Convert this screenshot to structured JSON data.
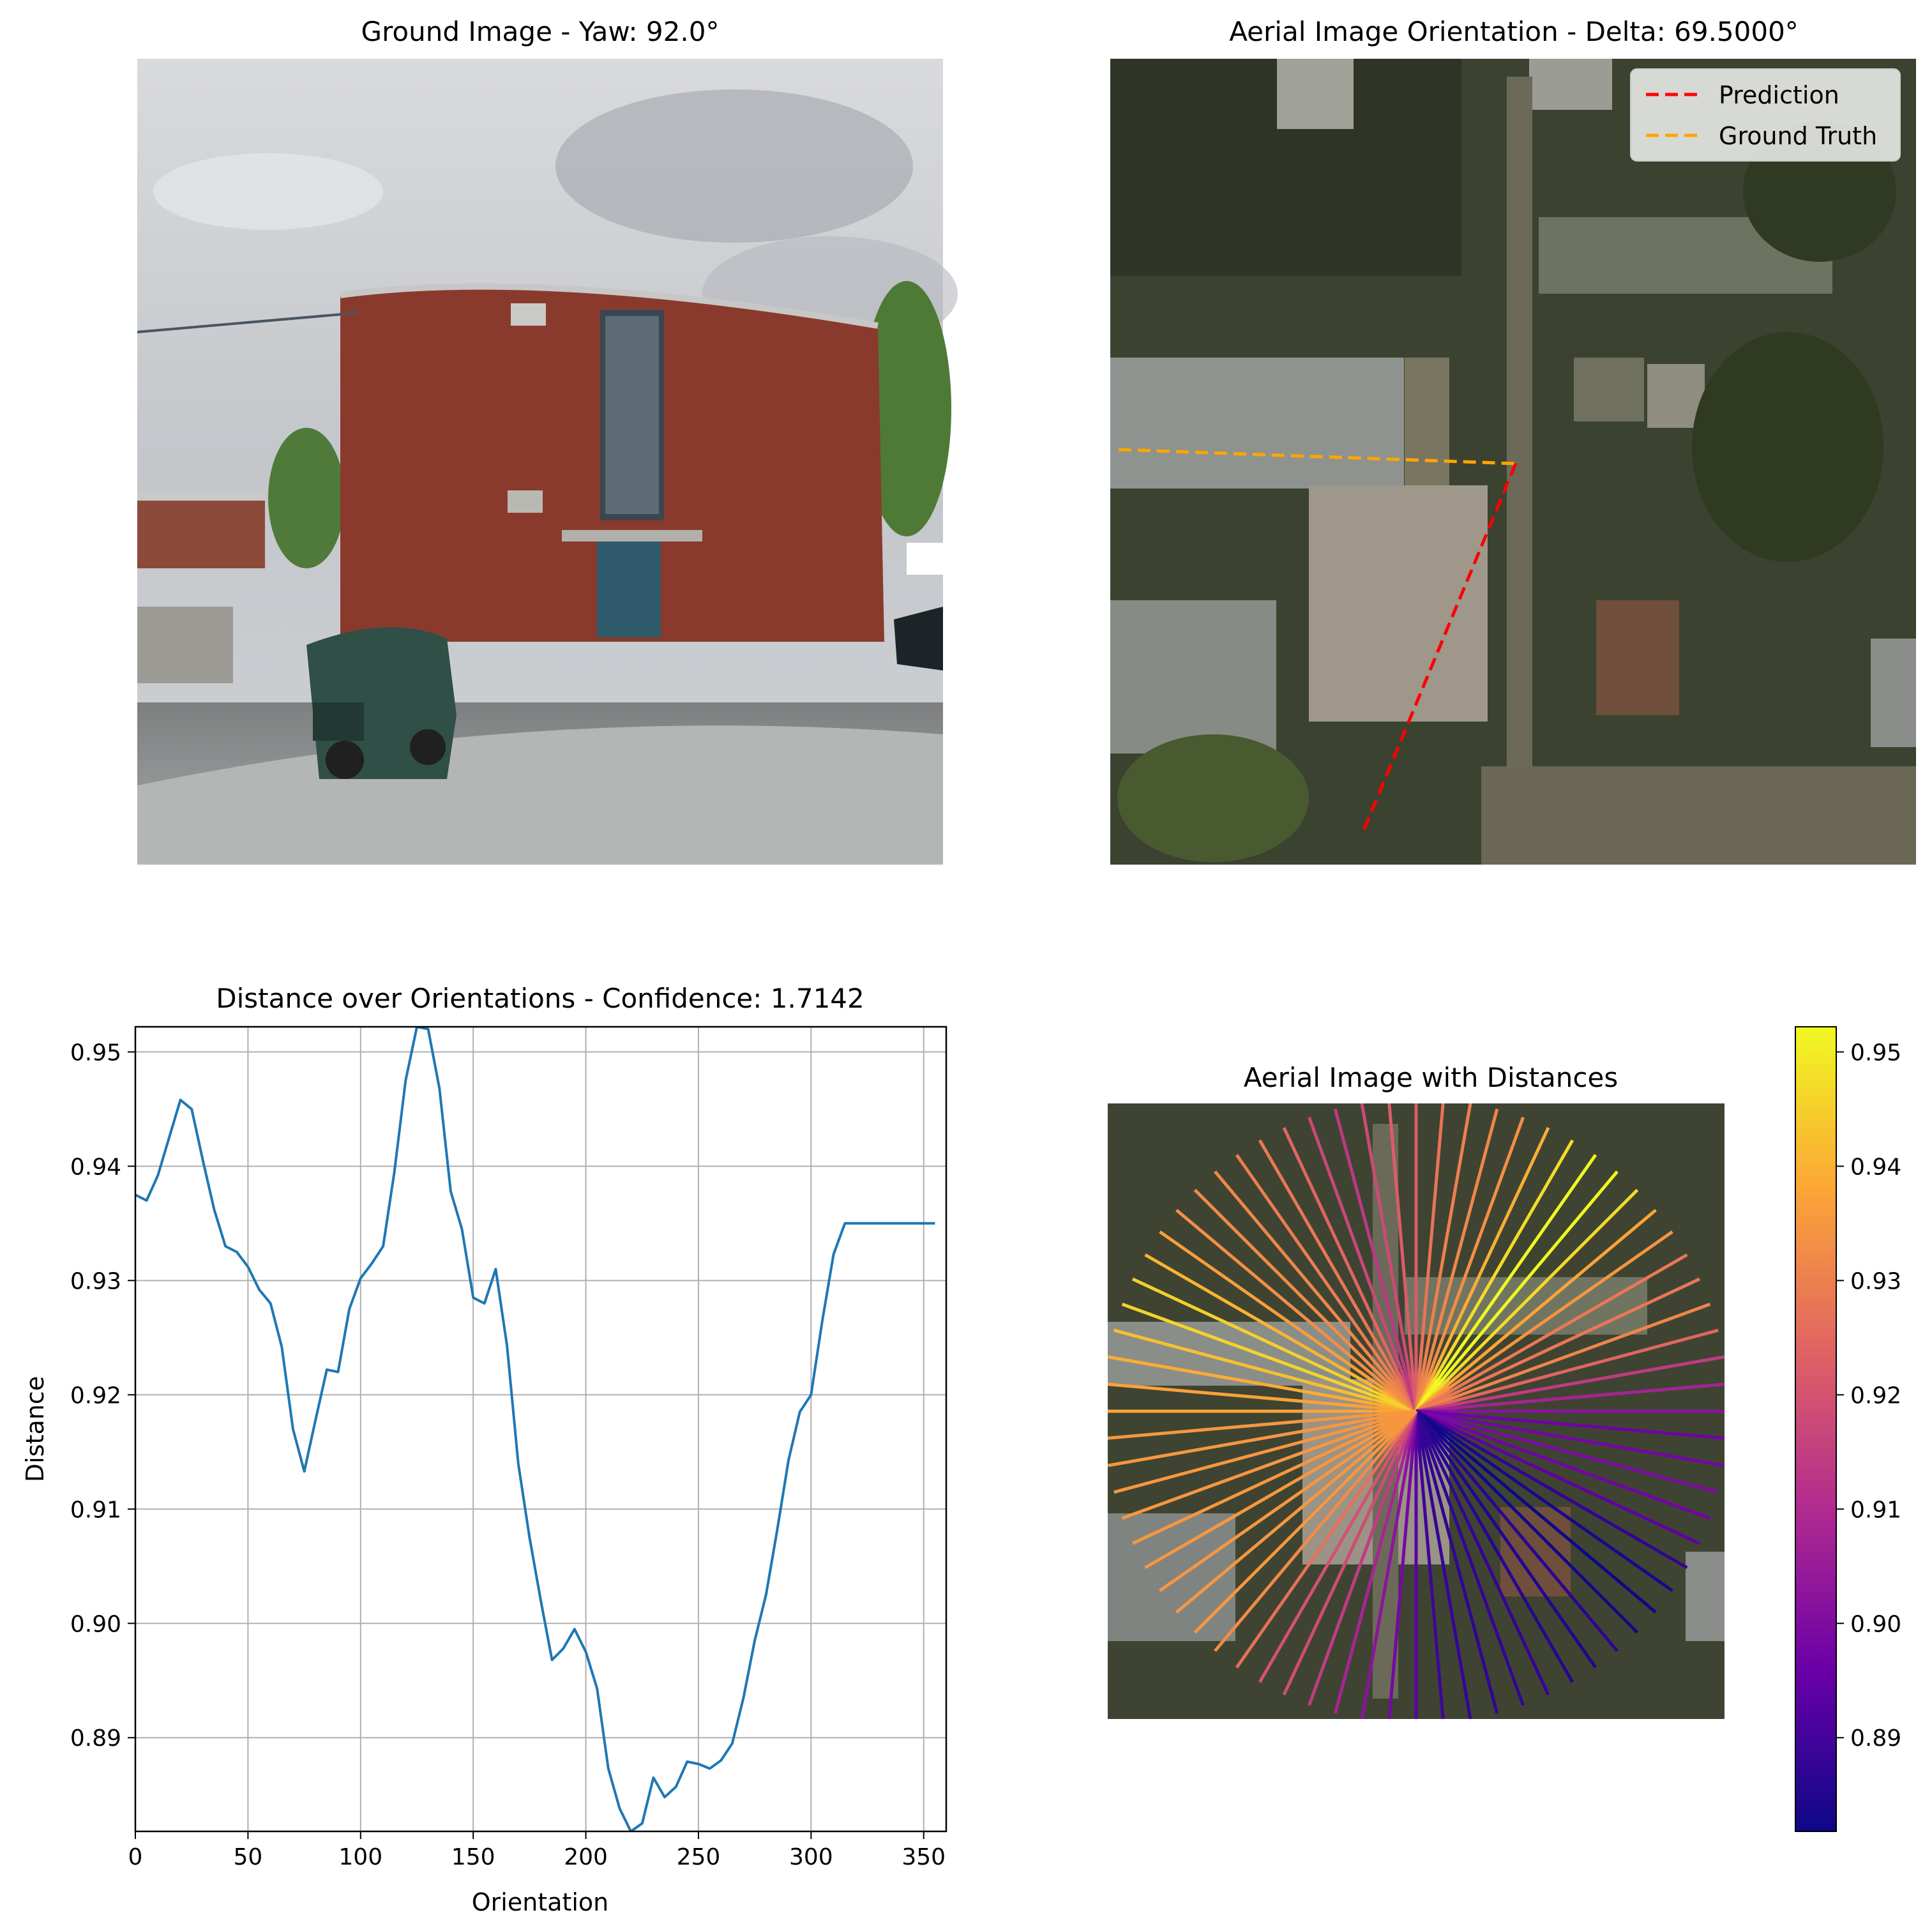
{
  "panels": {
    "ground": {
      "title": "Ground Image - Yaw: 92.0°"
    },
    "aerial": {
      "title": "Aerial Image Orientation - Delta: 69.5000°"
    },
    "distance": {
      "title": "Distance over Orientations - Confidence: 1.7142"
    },
    "aerial_dist": {
      "title": "Aerial Image with Distances"
    }
  },
  "legend": {
    "prediction": "Prediction",
    "ground_truth": "Ground Truth"
  },
  "colors": {
    "line": "#1f77b4",
    "prediction": "#ff0000",
    "ground_truth": "#ffa500",
    "grid": "#b0b0b0",
    "colormap": [
      "#0d0887",
      "#6a00a8",
      "#b12a90",
      "#e16462",
      "#fca636",
      "#f0f921"
    ]
  },
  "chart_data": [
    {
      "type": "line",
      "title": "Distance over Orientations - Confidence: 1.7142",
      "xlabel": "Orientation",
      "ylabel": "Distance",
      "xlim": [
        0,
        360
      ],
      "ylim": [
        0.8818,
        0.9522
      ],
      "grid": true,
      "xticks": [
        0,
        50,
        100,
        150,
        200,
        250,
        300,
        350
      ],
      "yticks": [
        0.89,
        0.9,
        0.91,
        0.92,
        0.93,
        0.94,
        0.95
      ],
      "series": [
        {
          "x": [
            0,
            5,
            10,
            15,
            20,
            25,
            30,
            35,
            40,
            45,
            50,
            55,
            60,
            65,
            70,
            75,
            80,
            85,
            90,
            95,
            100,
            105,
            110,
            115,
            120,
            125,
            130,
            135,
            140,
            145,
            150,
            155,
            160,
            165,
            170,
            175,
            180,
            185,
            190,
            195,
            200,
            205,
            210,
            215,
            220,
            225,
            230,
            235,
            240,
            245,
            250,
            255,
            260,
            265,
            270,
            275,
            280,
            285,
            290,
            295,
            300,
            305,
            310,
            315,
            320,
            325,
            330,
            335,
            340,
            345,
            350,
            355
          ],
          "values": [
            0.9375,
            0.937,
            0.9392,
            0.9425,
            0.9458,
            0.945,
            0.9405,
            0.9362,
            0.933,
            0.9325,
            0.9312,
            0.9292,
            0.928,
            0.9242,
            0.917,
            0.9133,
            0.9178,
            0.9222,
            0.922,
            0.9275,
            0.9302,
            0.9315,
            0.933,
            0.9395,
            0.9475,
            0.9522,
            0.952,
            0.9468,
            0.9378,
            0.9345,
            0.9285,
            0.928,
            0.931,
            0.9243,
            0.914,
            0.9075,
            0.902,
            0.8968,
            0.8978,
            0.8995,
            0.8975,
            0.8943,
            0.8873,
            0.8838,
            0.8818,
            0.8825,
            0.8865,
            0.8848,
            0.8857,
            0.8879,
            0.8877,
            0.8873,
            0.888,
            0.8895,
            0.8935,
            0.8985,
            0.9025,
            0.9082,
            0.9143,
            0.9185,
            0.92,
            0.9265,
            0.9323,
            0.935,
            0.935,
            0.935,
            0.935,
            0.935,
            0.935,
            0.935,
            0.935,
            0.935
          ]
        }
      ]
    },
    {
      "type": "line",
      "title": "Aerial Image with Distances",
      "colorbar": {
        "ticks": [
          0.89,
          0.9,
          0.91,
          0.92,
          0.93,
          0.94,
          0.95
        ],
        "range": [
          0.8818,
          0.9522
        ]
      }
    }
  ]
}
